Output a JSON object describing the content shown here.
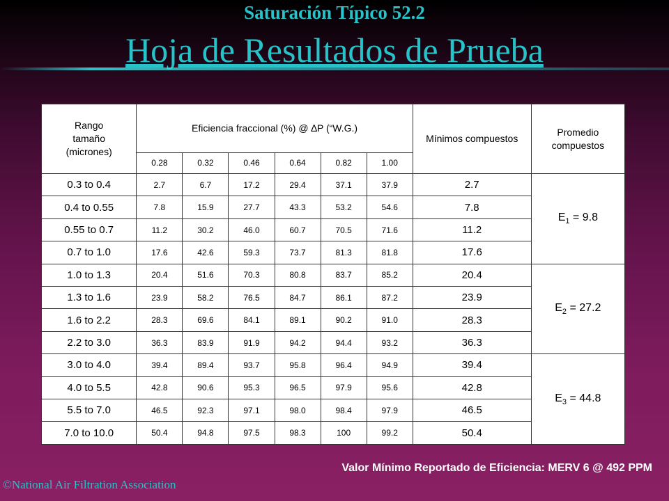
{
  "title": "Saturación Típico 52.2",
  "subtitle": "Hoja de Resultados de Prueba",
  "table": {
    "headers": {
      "range_line1": "Rango",
      "range_line2": "tamaño",
      "range_line3": "(micrones)",
      "efficiency": "Eficiencia fraccional (%) @ ∆P (“W.G.)",
      "min_composite": "Mínimos compuestos",
      "avg_composite": "Promedio compuestos"
    },
    "pressures": [
      "0.28",
      "0.32",
      "0.46",
      "0.64",
      "0.82",
      "1.00"
    ],
    "rows": [
      {
        "range": "0.3 to 0.4",
        "values": [
          "2.7",
          "6.7",
          "17.2",
          "29.4",
          "37.1",
          "37.9"
        ],
        "min": "2.7"
      },
      {
        "range": "0.4 to 0.55",
        "values": [
          "7.8",
          "15.9",
          "27.7",
          "43.3",
          "53.2",
          "54.6"
        ],
        "min": "7.8"
      },
      {
        "range": "0.55 to 0.7",
        "values": [
          "11.2",
          "30.2",
          "46.0",
          "60.7",
          "70.5",
          "71.6"
        ],
        "min": "11.2"
      },
      {
        "range": "0.7 to 1.0",
        "values": [
          "17.6",
          "42.6",
          "59.3",
          "73.7",
          "81.3",
          "81.8"
        ],
        "min": "17.6"
      },
      {
        "range": "1.0 to 1.3",
        "values": [
          "20.4",
          "51.6",
          "70.3",
          "80.8",
          "83.7",
          "85.2"
        ],
        "min": "20.4"
      },
      {
        "range": "1.3 to 1.6",
        "values": [
          "23.9",
          "58.2",
          "76.5",
          "84.7",
          "86.1",
          "87.2"
        ],
        "min": "23.9"
      },
      {
        "range": "1.6 to 2.2",
        "values": [
          "28.3",
          "69.6",
          "84.1",
          "89.1",
          "90.2",
          "91.0"
        ],
        "min": "28.3"
      },
      {
        "range": "2.2 to 3.0",
        "values": [
          "36.3",
          "83.9",
          "91.9",
          "94.2",
          "94.4",
          "93.2"
        ],
        "min": "36.3"
      },
      {
        "range": "3.0 to 4.0",
        "values": [
          "39.4",
          "89.4",
          "93.7",
          "95.8",
          "96.4",
          "94.9"
        ],
        "min": "39.4"
      },
      {
        "range": "4.0 to 5.5",
        "values": [
          "42.8",
          "90.6",
          "95.3",
          "96.5",
          "97.9",
          "95.6"
        ],
        "min": "42.8"
      },
      {
        "range": "5.5 to 7.0",
        "values": [
          "46.5",
          "92.3",
          "97.1",
          "98.0",
          "98.4",
          "97.9"
        ],
        "min": "46.5"
      },
      {
        "range": "7.0 to 10.0",
        "values": [
          "50.4",
          "94.8",
          "97.5",
          "98.3",
          "100",
          "99.2"
        ],
        "min": "50.4"
      }
    ],
    "averages": [
      {
        "letter": "E",
        "sub": "1",
        "value": " = 9.8"
      },
      {
        "letter": "E",
        "sub": "2",
        "value": " = 27.2"
      },
      {
        "letter": "E",
        "sub": "3",
        "value": " = 44.8"
      }
    ]
  },
  "footer_note": "Valor Mínimo Reportado de Eficiencia: MERV 6 @ 492 PPM",
  "copyright": "©National Air Filtration Association",
  "colors": {
    "title": "#27c3c8",
    "background_top": "#000000",
    "background_bottom": "#8a2064",
    "table_bg": "#ffffff"
  }
}
